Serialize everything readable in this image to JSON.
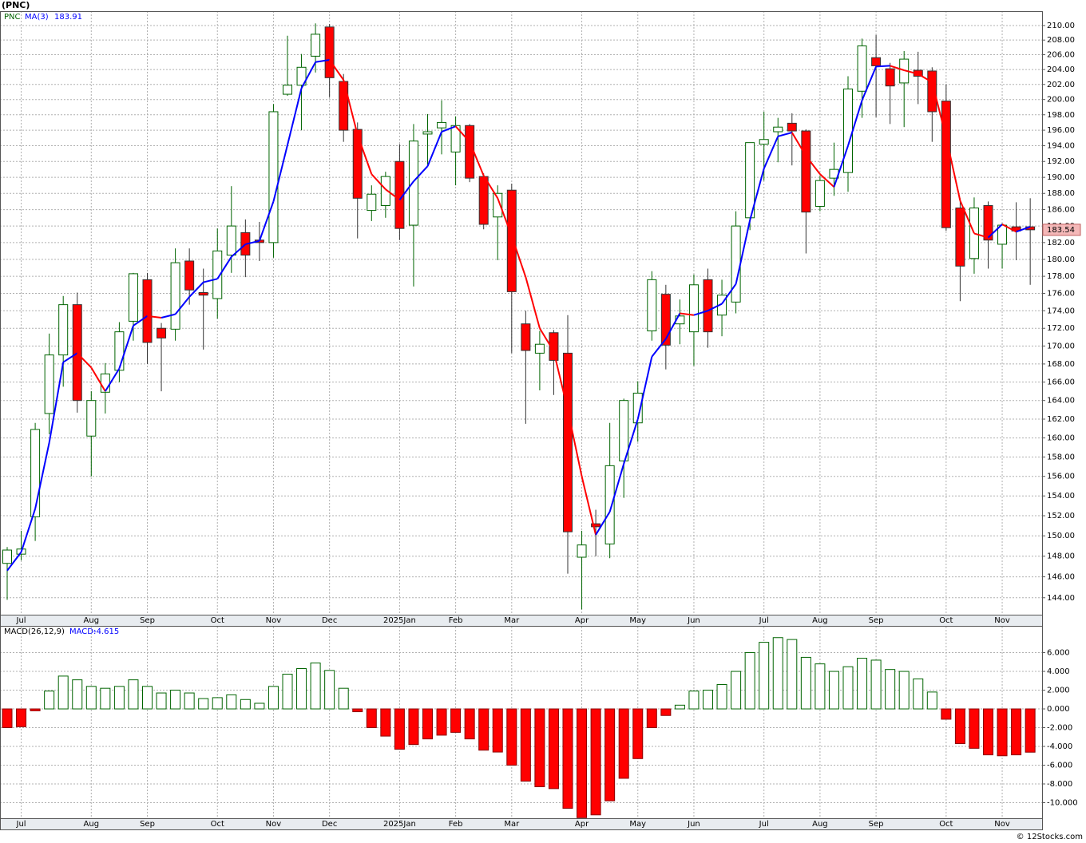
{
  "chart_data": [
    {
      "type": "candlestick",
      "title": "(PNC)",
      "symbol": "PNC",
      "log_scale": true,
      "grid": true,
      "up_color": "#006400",
      "down_color": "#ff0000",
      "categories": [
        null,
        "Jul",
        null,
        null,
        null,
        null,
        "Aug",
        null,
        null,
        null,
        "Sep",
        null,
        null,
        null,
        null,
        "Oct",
        null,
        null,
        null,
        "Nov",
        null,
        null,
        null,
        "Dec",
        null,
        null,
        null,
        null,
        "2025Jan",
        null,
        null,
        null,
        "Feb",
        null,
        null,
        null,
        "Mar",
        null,
        null,
        null,
        null,
        "Apr",
        null,
        null,
        null,
        "May",
        null,
        null,
        null,
        "Jun",
        null,
        null,
        null,
        null,
        "Jul",
        null,
        null,
        null,
        "Aug",
        null,
        null,
        null,
        "Sep",
        null,
        null,
        null,
        null,
        "Oct",
        null,
        null,
        null,
        "Nov",
        null,
        null
      ],
      "open": [
        147.3,
        148.2,
        151.9,
        162.6,
        169.0,
        174.7,
        160.2,
        164.9,
        167.3,
        172.8,
        177.6,
        172.0,
        171.9,
        179.8,
        176.1,
        175.4,
        180.5,
        183.2,
        182.3,
        182.0,
        200.7,
        201.9,
        205.8,
        209.8,
        202.4,
        196.1,
        185.9,
        186.5,
        192.0,
        184.1,
        195.5,
        196.3,
        193.2,
        196.6,
        190.1,
        185.1,
        188.4,
        172.5,
        169.2,
        171.5,
        169.2,
        147.9,
        151.2,
        149.2,
        157.6,
        161.6,
        171.7,
        175.9,
        172.5,
        171.6,
        177.6,
        173.5,
        175.0,
        185.0,
        194.2,
        195.8,
        196.9,
        195.9,
        186.4,
        189.9,
        190.6,
        201.1,
        205.6,
        204.1,
        202.2,
        203.9,
        203.8,
        199.8,
        186.2,
        180.1,
        186.5,
        181.8,
        183.9,
        183.9
      ],
      "high": [
        148.9,
        150.5,
        161.6,
        171.4,
        175.7,
        176.1,
        165.0,
        168.1,
        172.7,
        178.4,
        178.4,
        172.6,
        181.3,
        181.3,
        178.9,
        183.7,
        188.9,
        184.8,
        184.5,
        199.4,
        208.6,
        206.1,
        210.3,
        210.2,
        203.4,
        197.0,
        189.0,
        190.7,
        194.2,
        196.8,
        198.1,
        199.9,
        197.8,
        196.8,
        190.5,
        189.0,
        189.2,
        174.0,
        171.7,
        171.8,
        173.5,
        150.5,
        152.6,
        161.6,
        164.2,
        166.1,
        178.6,
        177.0,
        175.3,
        178.2,
        178.9,
        177.6,
        185.8,
        194.4,
        198.4,
        197.6,
        198.2,
        196.1,
        190.2,
        194.4,
        203.1,
        208.2,
        208.7,
        204.9,
        206.5,
        206.4,
        204.3,
        202.0,
        187.4,
        187.5,
        187.0,
        184.3,
        186.9,
        187.4
      ],
      "low": [
        143.8,
        147.6,
        149.5,
        160.4,
        165.5,
        162.7,
        156.0,
        162.6,
        166.0,
        170.6,
        168.0,
        165.0,
        170.6,
        174.7,
        169.6,
        173.1,
        178.4,
        177.9,
        179.8,
        180.2,
        200.5,
        196.0,
        203.6,
        200.3,
        194.5,
        182.5,
        184.6,
        185.0,
        182.3,
        176.8,
        191.6,
        192.9,
        189.0,
        189.4,
        183.6,
        179.9,
        169.2,
        161.5,
        165.1,
        164.6,
        146.3,
        142.9,
        148.0,
        147.8,
        153.8,
        159.6,
        170.6,
        167.4,
        170.2,
        167.8,
        169.8,
        171.1,
        173.7,
        183.5,
        189.6,
        191.9,
        191.5,
        180.7,
        185.8,
        187.7,
        188.2,
        197.6,
        197.7,
        196.8,
        196.4,
        199.4,
        194.5,
        183.4,
        175.1,
        178.3,
        178.9,
        178.9,
        179.9,
        177.0
      ],
      "close": [
        148.6,
        148.7,
        160.9,
        169.0,
        174.7,
        164.0,
        164.0,
        166.9,
        171.6,
        178.3,
        170.4,
        170.9,
        179.6,
        176.4,
        175.8,
        181.0,
        184.0,
        180.5,
        182.0,
        198.4,
        201.9,
        204.3,
        208.8,
        202.9,
        196.0,
        187.4,
        187.9,
        190.1,
        183.7,
        194.6,
        195.8,
        197.0,
        196.6,
        189.9,
        184.2,
        188.0,
        176.2,
        169.5,
        170.2,
        168.4,
        150.4,
        149.1,
        150.9,
        157.1,
        164.0,
        164.8,
        177.6,
        170.1,
        173.4,
        177.0,
        171.6,
        175.8,
        184.0,
        194.4,
        194.8,
        196.4,
        195.9,
        185.7,
        189.6,
        191.0,
        201.4,
        207.2,
        204.5,
        201.8,
        205.4,
        203.1,
        198.4,
        183.8,
        179.2,
        186.2,
        182.3,
        184.1,
        183.4,
        183.54
      ],
      "series": [
        {
          "name": "MA(3)",
          "color": "#0000ff",
          "down_color": "#ff0000",
          "values": [
            146.6,
            148.4,
            152.7,
            159.5,
            168.2,
            169.2,
            167.6,
            165.0,
            167.5,
            172.3,
            173.4,
            173.2,
            173.6,
            175.6,
            177.3,
            177.7,
            180.3,
            181.8,
            182.2,
            187.0,
            194.1,
            201.5,
            205.0,
            205.3,
            202.6,
            195.4,
            190.4,
            188.5,
            187.2,
            189.5,
            191.4,
            195.8,
            196.5,
            194.5,
            190.2,
            187.4,
            182.8,
            177.9,
            172.0,
            169.4,
            163.0,
            156.0,
            150.1,
            152.4,
            157.3,
            162.0,
            168.8,
            170.8,
            173.7,
            173.5,
            174.0,
            174.8,
            177.1,
            184.7,
            191.1,
            195.2,
            195.7,
            192.7,
            190.4,
            188.8,
            194.0,
            199.9,
            204.4,
            204.5,
            203.9,
            203.4,
            202.3,
            195.1,
            187.1,
            183.1,
            182.6,
            184.2,
            183.3,
            183.91
          ]
        }
      ],
      "ylim": [
        142.4,
        212.0
      ],
      "yticks": [
        {
          "value": 144,
          "label": "144.00"
        },
        {
          "value": 146,
          "label": "146.00"
        },
        {
          "value": 148,
          "label": "148.00"
        },
        {
          "value": 150,
          "label": "150.00"
        },
        {
          "value": 152,
          "label": "152.00"
        },
        {
          "value": 154,
          "label": "154.00"
        },
        {
          "value": 156,
          "label": "156.00"
        },
        {
          "value": 158,
          "label": "158.00"
        },
        {
          "value": 160,
          "label": "160.00"
        },
        {
          "value": 162,
          "label": "162.00"
        },
        {
          "value": 164,
          "label": "164.00"
        },
        {
          "value": 166,
          "label": "166.00"
        },
        {
          "value": 168,
          "label": "168.00"
        },
        {
          "value": 170,
          "label": "170.00"
        },
        {
          "value": 172,
          "label": "172.00"
        },
        {
          "value": 174,
          "label": "174.00"
        },
        {
          "value": 176,
          "label": "176.00"
        },
        {
          "value": 178,
          "label": "178.00"
        },
        {
          "value": 180,
          "label": "180.00"
        },
        {
          "value": 182,
          "label": "182.00"
        },
        {
          "value": 184,
          "label": "184.00"
        },
        {
          "value": 186,
          "label": "186.00"
        },
        {
          "value": 188,
          "label": "188.00"
        },
        {
          "value": 190,
          "label": "190.00"
        },
        {
          "value": 192,
          "label": "192.00"
        },
        {
          "value": 194,
          "label": "194.00"
        },
        {
          "value": 196,
          "label": "196.00"
        },
        {
          "value": 198,
          "label": "198.00"
        },
        {
          "value": 200,
          "label": "200.00"
        },
        {
          "value": 202,
          "label": "202.00"
        },
        {
          "value": 204,
          "label": "204.00"
        },
        {
          "value": 206,
          "label": "206.00"
        },
        {
          "value": 208,
          "label": "208.00"
        },
        {
          "value": 210,
          "label": "210.00"
        }
      ]
    },
    {
      "type": "bar",
      "title": "MACD(26,12,9)",
      "value_name": "MACD:",
      "grid": true,
      "up_color": "#006400",
      "down_color": "#ff0000",
      "categories": [
        null,
        "Jul",
        null,
        null,
        null,
        null,
        "Aug",
        null,
        null,
        null,
        "Sep",
        null,
        null,
        null,
        null,
        "Oct",
        null,
        null,
        null,
        "Nov",
        null,
        null,
        null,
        "Dec",
        null,
        null,
        null,
        null,
        "2025Jan",
        null,
        null,
        null,
        "Feb",
        null,
        null,
        null,
        "Mar",
        null,
        null,
        null,
        null,
        "Apr",
        null,
        null,
        null,
        "May",
        null,
        null,
        null,
        "Jun",
        null,
        null,
        null,
        null,
        "Jul",
        null,
        null,
        null,
        "Aug",
        null,
        null,
        null,
        "Sep",
        null,
        null,
        null,
        null,
        "Oct",
        null,
        null,
        null,
        "Nov",
        null,
        null
      ],
      "values": [
        -2.0,
        -1.9,
        -0.2,
        1.9,
        3.5,
        3.1,
        2.4,
        2.2,
        2.4,
        3.1,
        2.4,
        1.7,
        2.0,
        1.7,
        1.1,
        1.2,
        1.5,
        1.0,
        0.6,
        2.4,
        3.7,
        4.3,
        4.9,
        4.1,
        2.2,
        -0.3,
        -2.0,
        -2.9,
        -4.3,
        -3.8,
        -3.2,
        -2.8,
        -2.5,
        -3.2,
        -4.4,
        -4.6,
        -6.0,
        -7.7,
        -8.3,
        -8.5,
        -10.6,
        -11.6,
        -11.3,
        -9.8,
        -7.4,
        -5.3,
        -2.0,
        -0.7,
        0.4,
        1.9,
        2.0,
        2.6,
        4.0,
        6.0,
        7.1,
        7.6,
        7.4,
        5.5,
        4.8,
        4.0,
        4.5,
        5.4,
        5.2,
        4.2,
        4.0,
        3.2,
        1.8,
        -1.1,
        -3.7,
        -4.2,
        -4.9,
        -5.0,
        -4.9,
        -4.615
      ],
      "ylim": [
        -11.66,
        8.77
      ],
      "yticks": [
        {
          "value": -10,
          "label": "-10.000"
        },
        {
          "value": -8,
          "label": "-8.000"
        },
        {
          "value": -6,
          "label": "-6.000"
        },
        {
          "value": -4,
          "label": "-4.000"
        },
        {
          "value": -2,
          "label": "-2.000"
        },
        {
          "value": 0,
          "label": "0.000"
        },
        {
          "value": 2,
          "label": "2.000"
        },
        {
          "value": 4,
          "label": "4.000"
        },
        {
          "value": 6,
          "label": "6.000"
        }
      ]
    }
  ],
  "footer": "© 12Stocks.com"
}
